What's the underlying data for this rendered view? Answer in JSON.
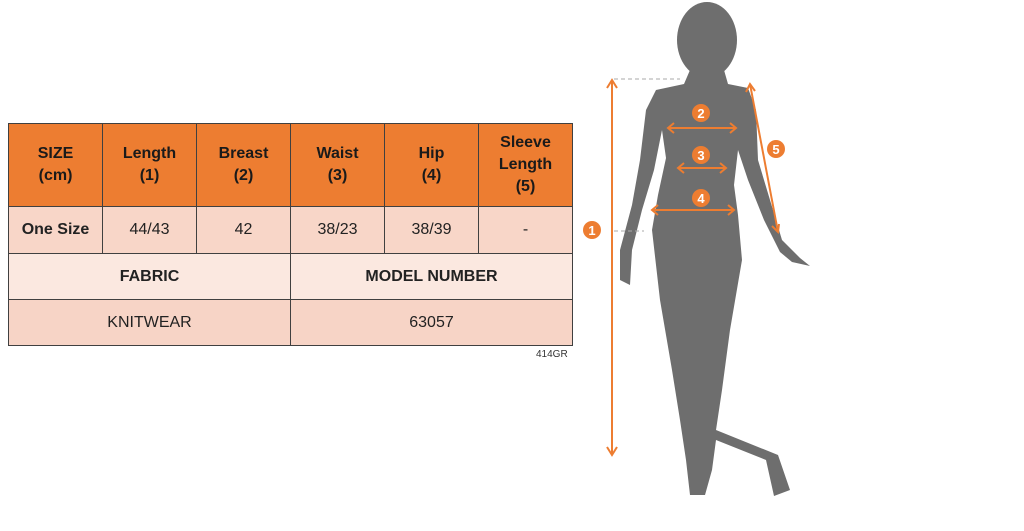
{
  "table": {
    "headers": [
      {
        "line1": "SIZE",
        "line2": "(cm)"
      },
      {
        "line1": "Length",
        "line2": "(1)"
      },
      {
        "line1": "Breast",
        "line2": "(2)"
      },
      {
        "line1": "Waist",
        "line2": "(3)"
      },
      {
        "line1": "Hip",
        "line2": "(4)"
      },
      {
        "line1": "Sleeve Length",
        "line2": "(5)"
      }
    ],
    "row": [
      "One Size",
      "44/43",
      "42",
      "38/23",
      "38/39",
      "-"
    ],
    "fabric_label": "FABRIC",
    "model_label": "MODEL NUMBER",
    "fabric_value": "KNITWEAR",
    "model_value": "63057"
  },
  "code": "414GR",
  "figure": {
    "markers": [
      "1",
      "2",
      "3",
      "4",
      "5"
    ],
    "accent": "#ED7D31",
    "silhouette": "#6E6E6E"
  }
}
